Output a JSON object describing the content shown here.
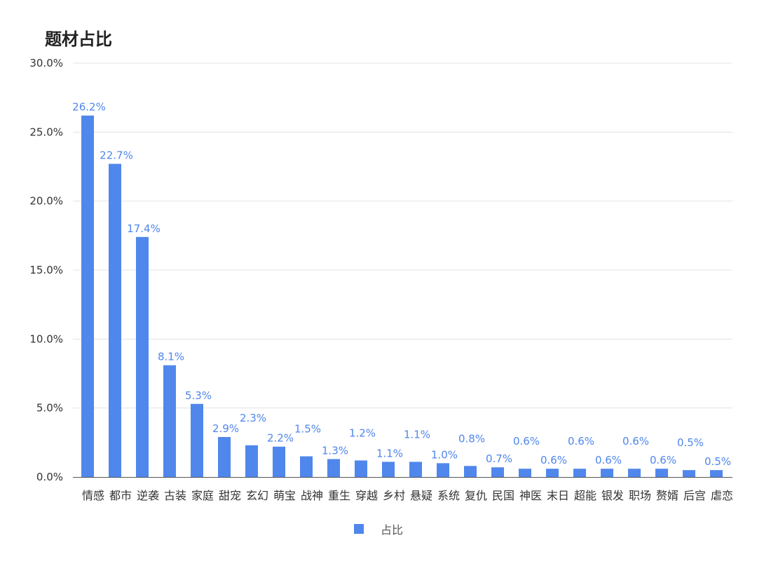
{
  "chart_data": {
    "type": "bar",
    "title": "题材占比",
    "categories": [
      "情感",
      "都市",
      "逆袭",
      "古装",
      "家庭",
      "甜宠",
      "玄幻",
      "萌宝",
      "战神",
      "重生",
      "穿越",
      "乡村",
      "悬疑",
      "系统",
      "复仇",
      "民国",
      "神医",
      "末日",
      "超能",
      "银发",
      "职场",
      "赘婿",
      "后宫",
      "虐恋"
    ],
    "series": [
      {
        "name": "占比",
        "values": [
          26.2,
          22.7,
          17.4,
          8.1,
          5.3,
          2.9,
          2.3,
          2.2,
          1.5,
          1.3,
          1.2,
          1.1,
          1.1,
          1.0,
          0.8,
          0.7,
          0.6,
          0.6,
          0.6,
          0.6,
          0.6,
          0.6,
          0.5,
          0.5
        ],
        "labels": [
          "26.2%",
          "22.7%",
          "17.4%",
          "8.1%",
          "5.3%",
          "2.9%",
          "2.3%",
          "2.2%",
          "1.5%",
          "1.3%",
          "1.2%",
          "1.1%",
          "1.1%",
          "1.0%",
          "0.8%",
          "0.7%",
          "0.6%",
          "0.6%",
          "0.6%",
          "0.6%",
          "0.6%",
          "0.6%",
          "0.5%",
          "0.5%"
        ]
      }
    ],
    "ylim": [
      0,
      30
    ],
    "yticks": [
      0,
      5,
      10,
      15,
      20,
      25,
      30
    ],
    "ytick_labels": [
      "0.0%",
      "5.0%",
      "10.0%",
      "15.0%",
      "20.0%",
      "25.0%",
      "30.0%"
    ],
    "label_offsets": [
      1,
      1,
      1,
      1,
      1,
      1,
      2,
      1,
      2,
      1,
      2,
      1,
      2,
      1,
      2,
      1,
      2,
      1,
      2,
      1,
      2,
      1,
      2,
      1
    ],
    "grid": true,
    "legend": "bottom-center",
    "colors": {
      "bar": "#5087ec",
      "label": "#4f86ec",
      "grid": "#e3e3e3",
      "axis": "#555555"
    }
  }
}
